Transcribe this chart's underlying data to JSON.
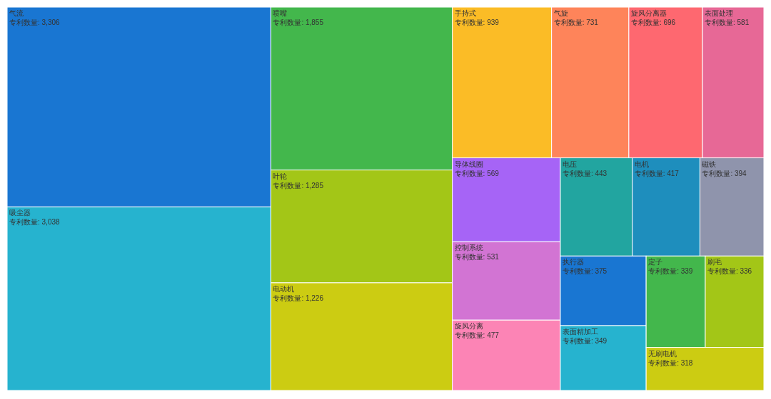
{
  "chart_data": {
    "type": "other",
    "ylabel": "专利数量:",
    "categories": [
      "气流",
      "吸尘器",
      "喷嘴",
      "叶轮",
      "电动机",
      "手持式",
      "气旋",
      "旋风分离器",
      "表面处理",
      "导体线圈",
      "控制系统",
      "旋风分离",
      "电压",
      "电机",
      "磁铁",
      "执行器",
      "表面精加工",
      "定子",
      "刷毛",
      "无刷电机"
    ],
    "values": [
      3306,
      3038,
      1855,
      1285,
      1226,
      939,
      731,
      696,
      581,
      569,
      531,
      477,
      443,
      417,
      394,
      375,
      349,
      339,
      336,
      318
    ],
    "value_labels": [
      "3,306",
      "3,038",
      "1,855",
      "1,285",
      "1,226",
      "939",
      "731",
      "696",
      "581",
      "569",
      "531",
      "477",
      "443",
      "417",
      "394",
      "375",
      "349",
      "339",
      "336",
      "318"
    ],
    "colors": [
      "#1976d2",
      "#26b3cf",
      "#43b74c",
      "#a3c617",
      "#cccc12",
      "#fbbc26",
      "#fe845a",
      "#fe6870",
      "#e76896",
      "#a664f6",
      "#d274d3",
      "#fc84b5",
      "#22a5a0",
      "#1e8ebd",
      "#8f94ac",
      "#1976d2",
      "#26b3cf",
      "#43b74c",
      "#a3c617",
      "#cccc12"
    ]
  }
}
